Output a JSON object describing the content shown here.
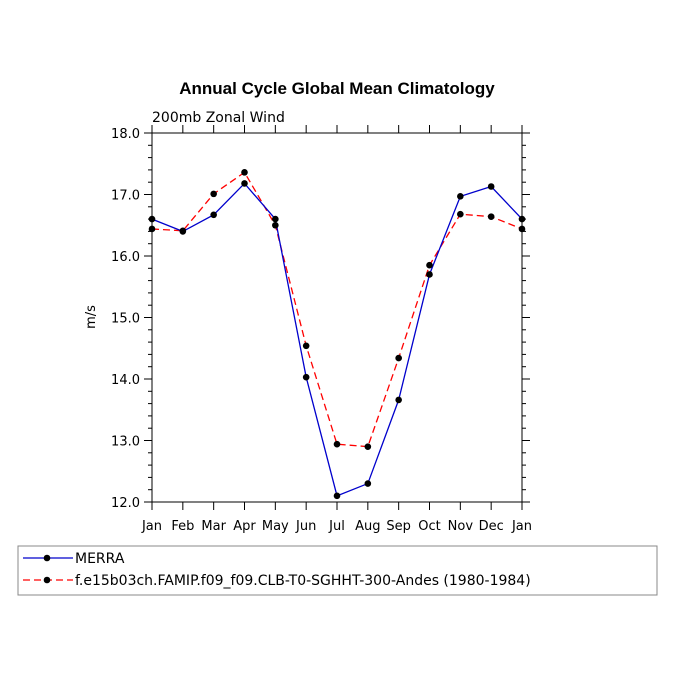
{
  "chart_data": {
    "type": "line",
    "title": "Annual Cycle Global Mean Climatology",
    "subtitle": "200mb Zonal Wind",
    "xlabel": "",
    "ylabel": "m/s",
    "ylim": [
      12.0,
      18.0
    ],
    "yticks": [
      "12.0",
      "13.0",
      "14.0",
      "15.0",
      "16.0",
      "17.0",
      "18.0"
    ],
    "categories": [
      "Jan",
      "Feb",
      "Mar",
      "Apr",
      "May",
      "Jun",
      "Jul",
      "Aug",
      "Sep",
      "Oct",
      "Nov",
      "Dec",
      "Jan"
    ],
    "series": [
      {
        "name": "MERRA",
        "color": "#0000cc",
        "style": "solid",
        "values": [
          16.6,
          16.4,
          16.67,
          17.18,
          16.6,
          14.03,
          12.1,
          12.3,
          13.66,
          15.7,
          16.97,
          17.13,
          16.6
        ]
      },
      {
        "name": "f.e15b03ch.FAMIP.f09_f09.CLB-T0-SGHHT-300-Andes (1980-1984)",
        "color": "#ff0000",
        "style": "dashed",
        "values": [
          16.44,
          16.41,
          17.01,
          17.36,
          16.5,
          14.54,
          12.94,
          12.9,
          14.34,
          15.85,
          16.68,
          16.64,
          16.44
        ]
      }
    ],
    "legend_position": "bottom"
  }
}
